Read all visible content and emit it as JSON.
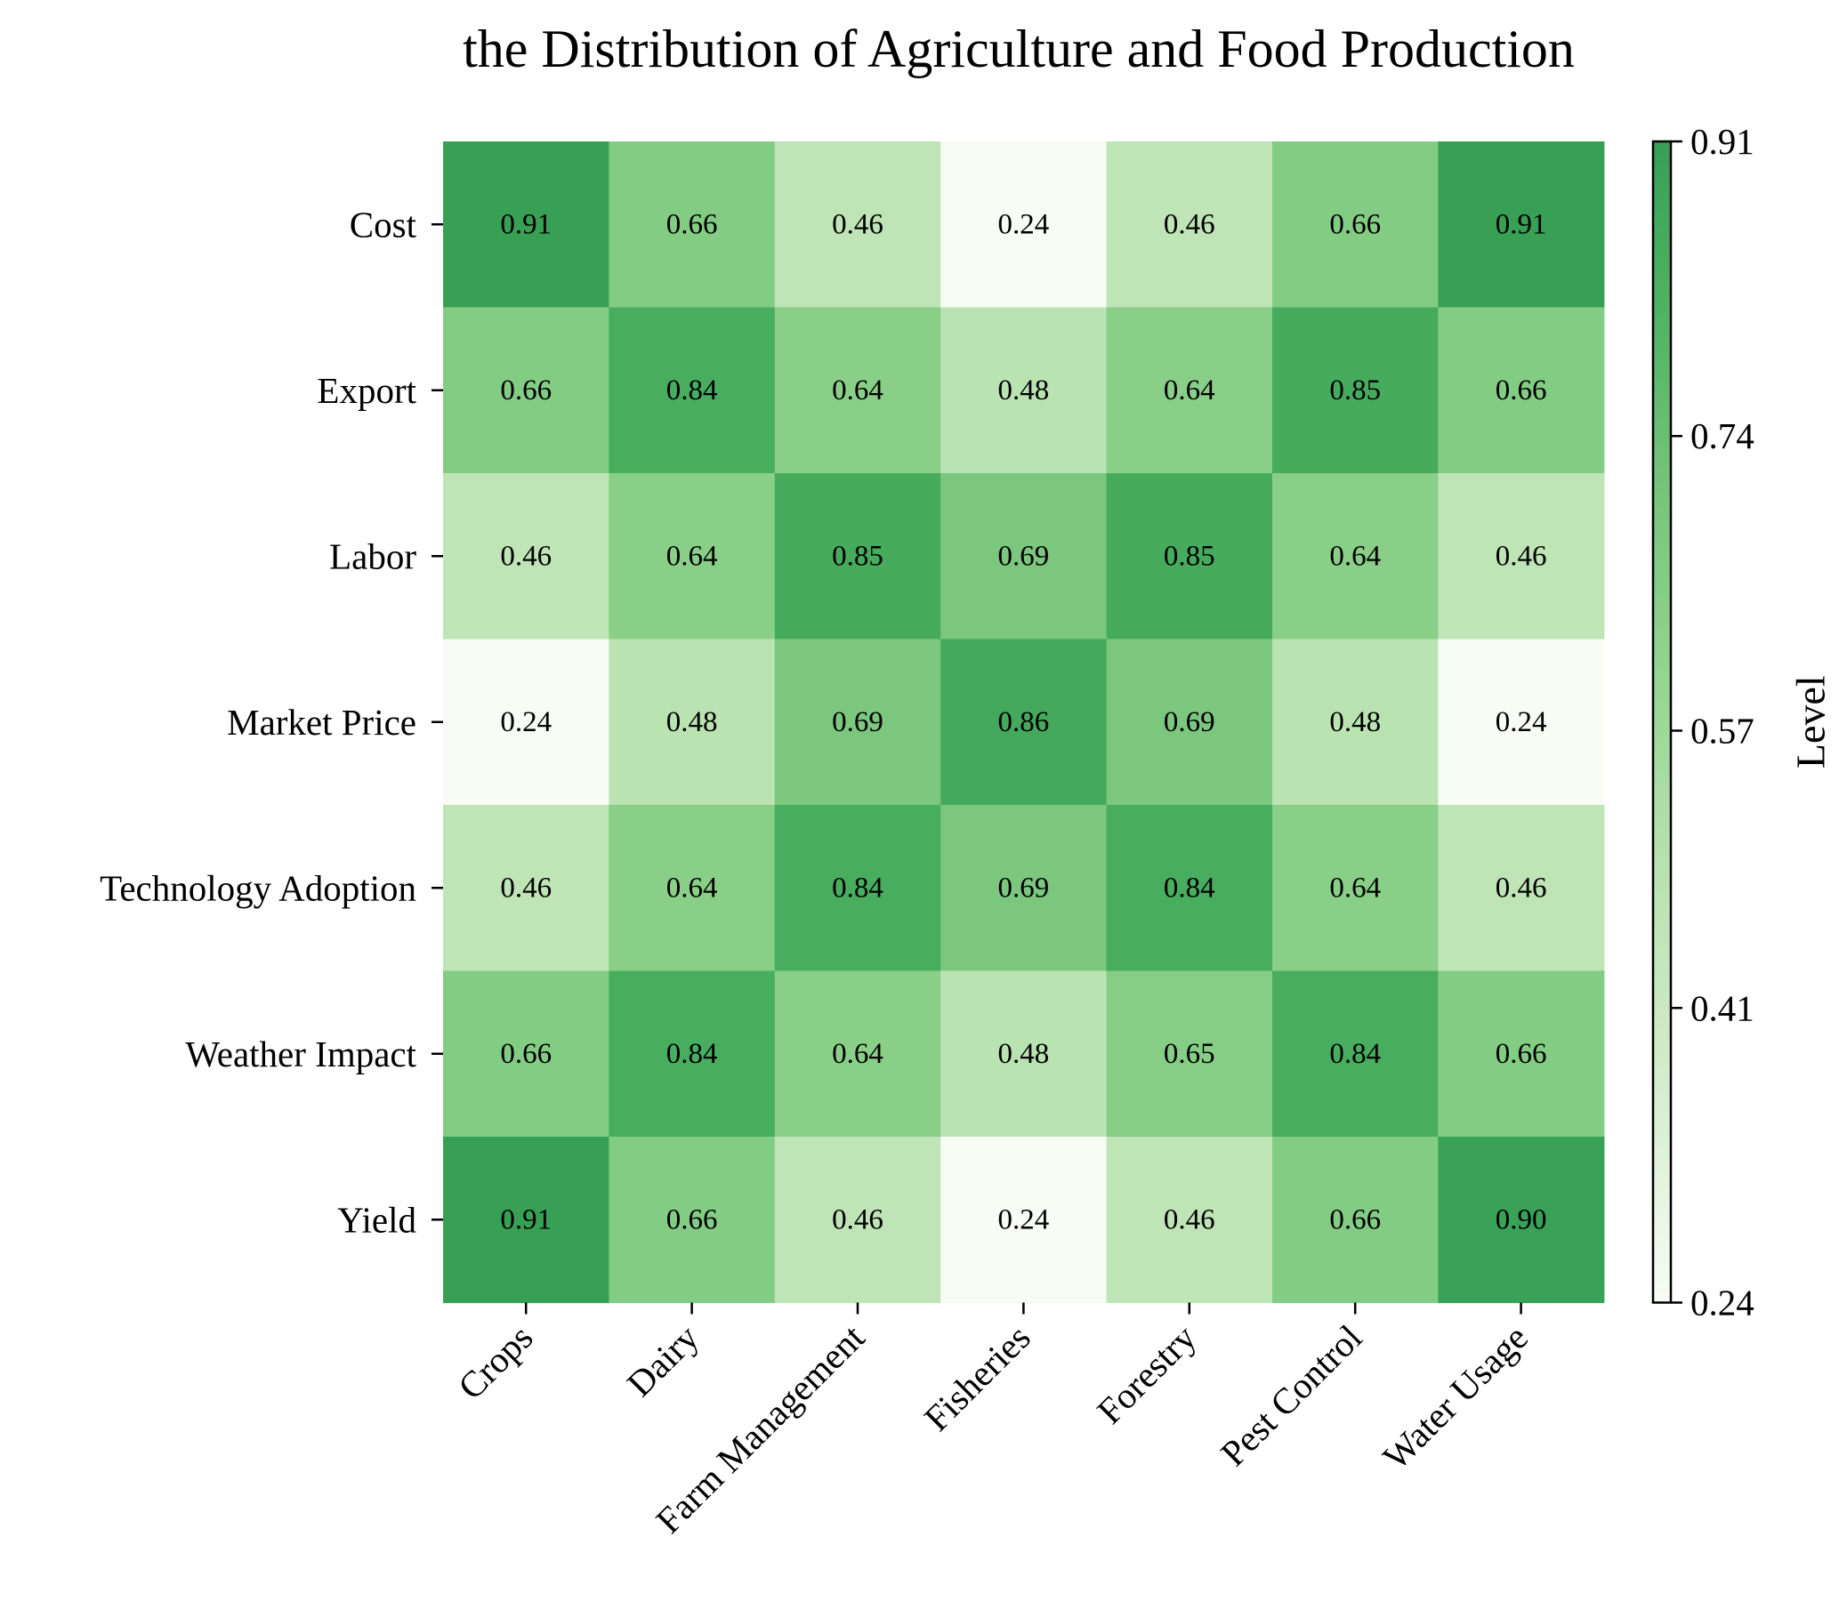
{
  "chart_data": {
    "type": "heatmap",
    "title": "the Distribution of Agriculture and Food Production",
    "x_categories": [
      "Crops",
      "Dairy",
      "Farm Management",
      "Fisheries",
      "Forestry",
      "Pest Control",
      "Water Usage"
    ],
    "y_categories": [
      "Cost",
      "Export",
      "Labor",
      "Market Price",
      "Technology Adoption",
      "Weather Impact",
      "Yield"
    ],
    "values": [
      [
        0.91,
        0.66,
        0.46,
        0.24,
        0.46,
        0.66,
        0.91
      ],
      [
        0.66,
        0.84,
        0.64,
        0.48,
        0.64,
        0.85,
        0.66
      ],
      [
        0.46,
        0.64,
        0.85,
        0.69,
        0.85,
        0.64,
        0.46
      ],
      [
        0.24,
        0.48,
        0.69,
        0.86,
        0.69,
        0.48,
        0.24
      ],
      [
        0.46,
        0.64,
        0.84,
        0.69,
        0.84,
        0.64,
        0.46
      ],
      [
        0.66,
        0.84,
        0.64,
        0.48,
        0.65,
        0.84,
        0.66
      ],
      [
        0.91,
        0.66,
        0.46,
        0.24,
        0.46,
        0.66,
        0.9
      ]
    ],
    "colorbar": {
      "label": "Level",
      "range": [
        0.24,
        0.91
      ],
      "ticks": [
        "0.24",
        "0.41",
        "0.57",
        "0.74",
        "0.91"
      ],
      "colormap": "Greens",
      "low_color": "#f7fcf5",
      "high_color": "#37a055"
    },
    "grid": false,
    "legend": "none"
  }
}
